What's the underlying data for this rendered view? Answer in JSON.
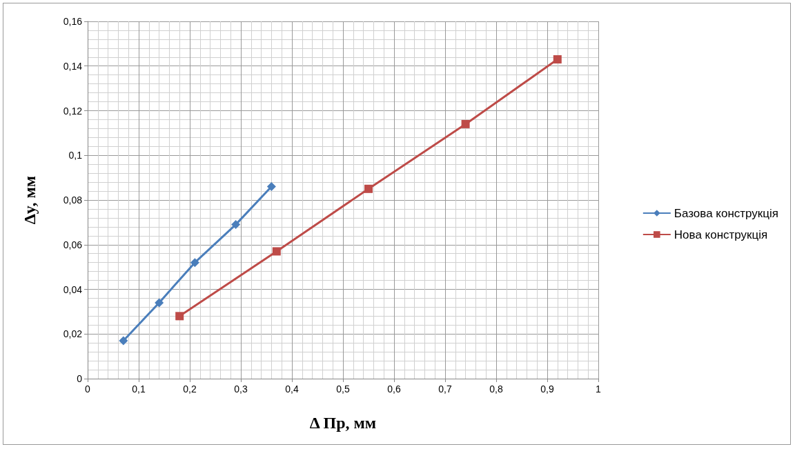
{
  "chart_data": {
    "type": "line",
    "xlabel": "Δ Пр, мм",
    "ylabel": "Δy, мм",
    "xlim": [
      0,
      1
    ],
    "xticks": [
      0,
      {
        "value": 0.1,
        "label": "0,1"
      },
      {
        "value": 0.2,
        "label": "0,2"
      },
      {
        "value": 0.3,
        "label": "0,3"
      },
      {
        "value": 0.4,
        "label": "0,4"
      },
      {
        "value": 0.5,
        "label": "0,5"
      },
      {
        "value": 0.6,
        "label": "0,6"
      },
      {
        "value": 0.7,
        "label": "0,7"
      },
      {
        "value": 0.8,
        "label": "0,8"
      },
      {
        "value": 0.9,
        "label": "0,9"
      },
      1
    ],
    "ylim": [
      0,
      0.16
    ],
    "yticks": [
      0,
      {
        "value": 0.02,
        "label": "0,02"
      },
      {
        "value": 0.04,
        "label": "0,04"
      },
      {
        "value": 0.06,
        "label": "0,06"
      },
      {
        "value": 0.08,
        "label": "0,08"
      },
      {
        "value": 0.1,
        "label": "0,1"
      },
      {
        "value": 0.12,
        "label": "0,12"
      },
      {
        "value": 0.14,
        "label": "0,14"
      },
      {
        "value": 0.16,
        "label": "0,16"
      }
    ],
    "grid": true,
    "legend": "right",
    "line_style": "solid",
    "series": [
      {
        "name": "Базова конструкція",
        "color": "#4a7ebb",
        "marker": "diamond",
        "x": [
          0.07,
          0.14,
          0.21,
          0.29,
          0.36
        ],
        "values": [
          0.017,
          0.034,
          0.052,
          0.069,
          0.086
        ]
      },
      {
        "name": "Нова конструкція",
        "color": "#be4b48",
        "marker": "square",
        "x": [
          0.18,
          0.37,
          0.55,
          0.74,
          0.92
        ],
        "values": [
          0.028,
          0.057,
          0.085,
          0.114,
          0.143
        ]
      }
    ]
  }
}
